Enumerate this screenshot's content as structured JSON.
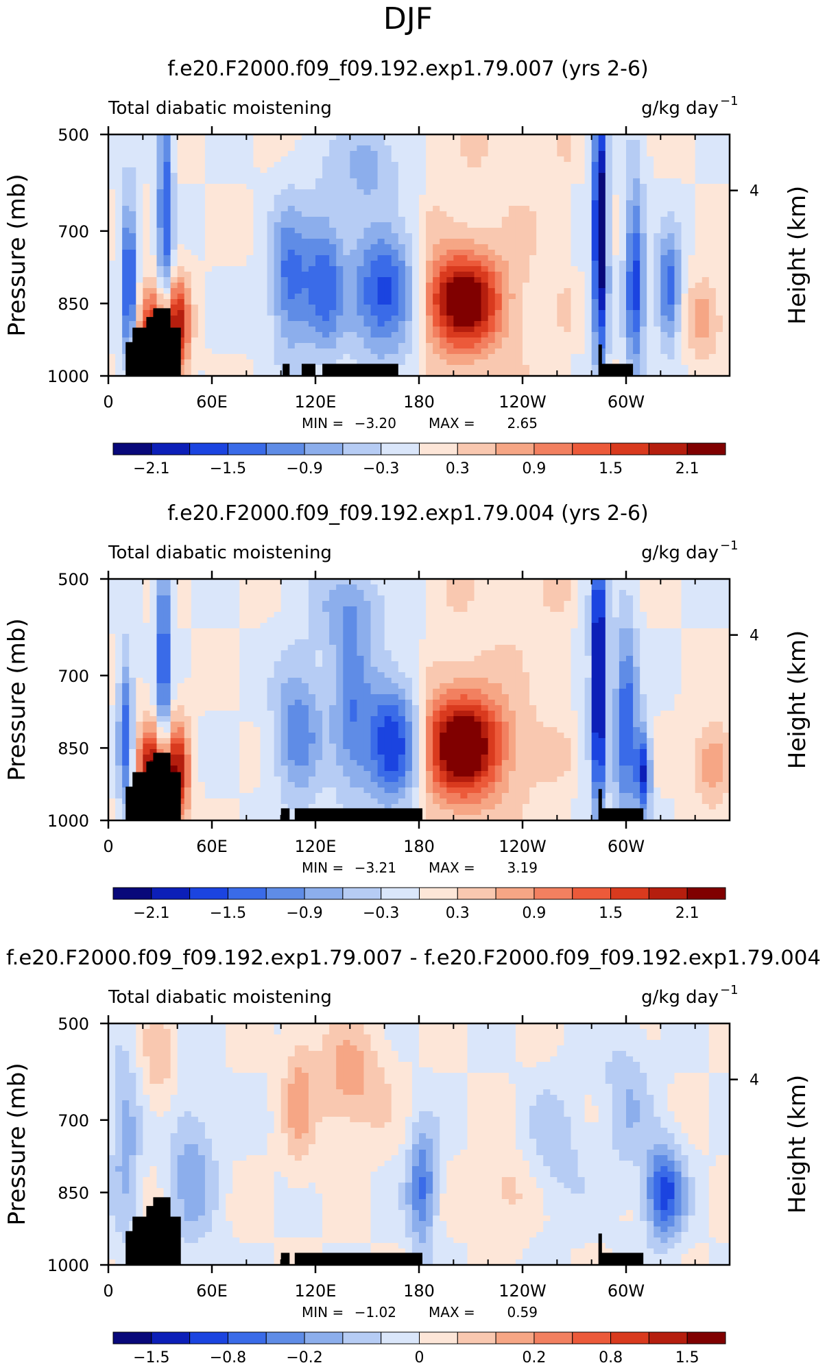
{
  "figure": {
    "title": "DJF"
  },
  "colors": {
    "scale": [
      "#08087a",
      "#0c1fb8",
      "#1b44e0",
      "#3a6be8",
      "#5f8ce6",
      "#8caeec",
      "#b6ccf4",
      "#dae6fa",
      "#fde6d8",
      "#f9c8b0",
      "#f6a685",
      "#f28060",
      "#ec5a3a",
      "#d93a1e",
      "#b51e0e",
      "#800000"
    ],
    "topography": "#000000"
  },
  "chart_data": [
    {
      "type": "heatmap",
      "title": "f.e20.F2000.f09_f09.192.exp1.79.007 (yrs 2-6)",
      "left_label": "Total diabatic moistening",
      "units_label": "g/kg day",
      "units_exponent": "−1",
      "ylabel": "Pressure (mb)",
      "ylabel_right": "Height (km)",
      "yticks": [
        "500",
        "700",
        "850",
        "1000"
      ],
      "ytick_values": [
        500,
        700,
        850,
        1000
      ],
      "right_ticks": [
        "4"
      ],
      "right_tick_pressure": 616,
      "xticks": [
        "0",
        "60E",
        "120E",
        "180",
        "120W",
        "60W"
      ],
      "xtick_values": [
        0,
        60,
        120,
        180,
        240,
        300
      ],
      "xlim": [
        0,
        360
      ],
      "ylim": [
        500,
        1000
      ],
      "min_label": "MIN =",
      "min_value": "−3.20",
      "max_label": "MAX =",
      "max_value": "2.65",
      "colorbar_labels": [
        "−2.1",
        "−1.5",
        "−0.9",
        "−0.3",
        "0.3",
        "0.9",
        "1.5",
        "2.1"
      ],
      "topography": [
        [
          10,
          930
        ],
        [
          14,
          930
        ],
        [
          14,
          900
        ],
        [
          22,
          900
        ],
        [
          22,
          878
        ],
        [
          26,
          878
        ],
        [
          26,
          860
        ],
        [
          36,
          860
        ],
        [
          36,
          900
        ],
        [
          42,
          900
        ],
        [
          42,
          1000
        ],
        [
          10,
          1000
        ]
      ],
      "topography_extra": [
        [
          [
            101,
            975
          ],
          [
            105,
            975
          ],
          [
            105,
            1000
          ],
          [
            101,
            1000
          ]
        ],
        [
          [
            112,
            975
          ],
          [
            120,
            975
          ],
          [
            120,
            1000
          ],
          [
            112,
            1000
          ]
        ],
        [
          [
            124,
            975
          ],
          [
            168,
            975
          ],
          [
            168,
            1000
          ],
          [
            124,
            1000
          ]
        ],
        [
          [
            284,
            935
          ],
          [
            286,
            935
          ],
          [
            286,
            975
          ],
          [
            304,
            975
          ],
          [
            304,
            1000
          ],
          [
            284,
            1000
          ]
        ]
      ],
      "features": [
        {
          "lon": 205,
          "p": 845,
          "amp": 2.4,
          "slon": 16,
          "sp": 70
        },
        {
          "lon": 160,
          "p": 830,
          "amp": -1.7,
          "slon": 14,
          "sp": 90
        },
        {
          "lon": 105,
          "p": 800,
          "amp": -1.3,
          "slon": 8,
          "sp": 110
        },
        {
          "lon": 125,
          "p": 800,
          "amp": -1.3,
          "slon": 8,
          "sp": 110
        },
        {
          "lon": 40,
          "p": 900,
          "amp": 2.0,
          "slon": 5,
          "sp": 70
        },
        {
          "lon": 25,
          "p": 900,
          "amp": 1.8,
          "slon": 6,
          "sp": 60
        },
        {
          "lon": 12,
          "p": 800,
          "amp": -1.8,
          "slon": 3,
          "sp": 120
        },
        {
          "lon": 33,
          "p": 650,
          "amp": -1.5,
          "slon": 3,
          "sp": 200
        },
        {
          "lon": 285,
          "p": 700,
          "amp": -2.6,
          "slon": 3,
          "sp": 200
        },
        {
          "lon": 305,
          "p": 800,
          "amp": -1.6,
          "slon": 4,
          "sp": 150
        },
        {
          "lon": 325,
          "p": 820,
          "amp": -1.5,
          "slon": 5,
          "sp": 80
        },
        {
          "lon": 150,
          "p": 560,
          "amp": -0.8,
          "slon": 12,
          "sp": 60
        },
        {
          "lon": 345,
          "p": 880,
          "amp": 0.8,
          "slon": 8,
          "sp": 60
        }
      ]
    },
    {
      "type": "heatmap",
      "title": "f.e20.F2000.f09_f09.192.exp1.79.004 (yrs 2-6)",
      "left_label": "Total diabatic moistening",
      "units_label": "g/kg day",
      "units_exponent": "−1",
      "ylabel": "Pressure (mb)",
      "ylabel_right": "Height (km)",
      "yticks": [
        "500",
        "700",
        "850",
        "1000"
      ],
      "ytick_values": [
        500,
        700,
        850,
        1000
      ],
      "right_ticks": [
        "4"
      ],
      "right_tick_pressure": 616,
      "xticks": [
        "0",
        "60E",
        "120E",
        "180",
        "120W",
        "60W"
      ],
      "xtick_values": [
        0,
        60,
        120,
        180,
        240,
        300
      ],
      "xlim": [
        0,
        360
      ],
      "ylim": [
        500,
        1000
      ],
      "min_label": "MIN =",
      "min_value": "−3.21",
      "max_label": "MAX =",
      "max_value": "3.19",
      "colorbar_labels": [
        "−2.1",
        "−1.5",
        "−0.9",
        "−0.3",
        "0.3",
        "0.9",
        "1.5",
        "2.1"
      ],
      "topography": [
        [
          10,
          930
        ],
        [
          14,
          930
        ],
        [
          14,
          900
        ],
        [
          22,
          900
        ],
        [
          22,
          878
        ],
        [
          26,
          878
        ],
        [
          26,
          860
        ],
        [
          36,
          860
        ],
        [
          36,
          900
        ],
        [
          42,
          900
        ],
        [
          42,
          1000
        ],
        [
          10,
          1000
        ]
      ],
      "topography_extra": [
        [
          [
            100,
            975
          ],
          [
            105,
            975
          ],
          [
            105,
            1000
          ],
          [
            100,
            1000
          ]
        ],
        [
          [
            108,
            975
          ],
          [
            182,
            975
          ],
          [
            182,
            1000
          ],
          [
            108,
            1000
          ]
        ],
        [
          [
            284,
            935
          ],
          [
            286,
            935
          ],
          [
            286,
            975
          ],
          [
            310,
            975
          ],
          [
            310,
            1000
          ],
          [
            284,
            1000
          ]
        ]
      ],
      "features": [
        {
          "lon": 205,
          "p": 845,
          "amp": 2.6,
          "slon": 17,
          "sp": 75
        },
        {
          "lon": 165,
          "p": 840,
          "amp": -1.9,
          "slon": 12,
          "sp": 90
        },
        {
          "lon": 110,
          "p": 810,
          "amp": -1.1,
          "slon": 10,
          "sp": 110
        },
        {
          "lon": 140,
          "p": 780,
          "amp": -1.0,
          "slon": 8,
          "sp": 120
        },
        {
          "lon": 40,
          "p": 900,
          "amp": 2.1,
          "slon": 5,
          "sp": 70
        },
        {
          "lon": 25,
          "p": 890,
          "amp": 2.2,
          "slon": 6,
          "sp": 60
        },
        {
          "lon": 10,
          "p": 820,
          "amp": -1.4,
          "slon": 3,
          "sp": 120
        },
        {
          "lon": 32,
          "p": 650,
          "amp": -1.5,
          "slon": 3,
          "sp": 200
        },
        {
          "lon": 284,
          "p": 700,
          "amp": -2.6,
          "slon": 3,
          "sp": 200
        },
        {
          "lon": 300,
          "p": 800,
          "amp": -1.5,
          "slon": 5,
          "sp": 150
        },
        {
          "lon": 310,
          "p": 900,
          "amp": -1.8,
          "slon": 3,
          "sp": 60
        },
        {
          "lon": 140,
          "p": 560,
          "amp": -0.8,
          "slon": 14,
          "sp": 70
        },
        {
          "lon": 350,
          "p": 880,
          "amp": 0.9,
          "slon": 8,
          "sp": 60
        }
      ]
    },
    {
      "type": "heatmap",
      "title": "f.e20.F2000.f09_f09.192.exp1.79.007 - f.e20.F2000.f09_f09.192.exp1.79.004",
      "left_label": "Total diabatic moistening",
      "units_label": "g/kg day",
      "units_exponent": "−1",
      "ylabel": "Pressure (mb)",
      "ylabel_right": "Height (km)",
      "yticks": [
        "500",
        "700",
        "850",
        "1000"
      ],
      "ytick_values": [
        500,
        700,
        850,
        1000
      ],
      "right_ticks": [
        "4"
      ],
      "right_tick_pressure": 616,
      "xticks": [
        "0",
        "60E",
        "120E",
        "180",
        "120W",
        "60W"
      ],
      "xtick_values": [
        0,
        60,
        120,
        180,
        240,
        300
      ],
      "xlim": [
        0,
        360
      ],
      "ylim": [
        500,
        1000
      ],
      "min_label": "MIN =",
      "min_value": "−1.02",
      "max_label": "MAX =",
      "max_value": "0.59",
      "colorbar_labels": [
        "−1.5",
        "−0.8",
        "−0.2",
        "0",
        "0.2",
        "0.8",
        "1.5"
      ],
      "colorbar_label_slots": [
        1,
        3,
        5,
        8,
        11,
        13,
        15
      ],
      "topography": [
        [
          10,
          930
        ],
        [
          14,
          930
        ],
        [
          14,
          900
        ],
        [
          22,
          900
        ],
        [
          22,
          878
        ],
        [
          26,
          878
        ],
        [
          26,
          860
        ],
        [
          36,
          860
        ],
        [
          36,
          900
        ],
        [
          42,
          900
        ],
        [
          42,
          1000
        ],
        [
          10,
          1000
        ]
      ],
      "topography_extra": [
        [
          [
            100,
            975
          ],
          [
            105,
            975
          ],
          [
            105,
            1000
          ],
          [
            100,
            1000
          ]
        ],
        [
          [
            108,
            975
          ],
          [
            182,
            975
          ],
          [
            182,
            1000
          ],
          [
            108,
            1000
          ]
        ],
        [
          [
            284,
            935
          ],
          [
            286,
            935
          ],
          [
            286,
            975
          ],
          [
            310,
            975
          ],
          [
            310,
            1000
          ],
          [
            284,
            1000
          ]
        ]
      ],
      "features": [
        {
          "lon": 322,
          "p": 850,
          "amp": -1.1,
          "slon": 8,
          "sp": 70
        },
        {
          "lon": 182,
          "p": 840,
          "amp": -0.85,
          "slon": 6,
          "sp": 90
        },
        {
          "lon": 140,
          "p": 620,
          "amp": 0.5,
          "slon": 15,
          "sp": 80
        },
        {
          "lon": 110,
          "p": 650,
          "amp": 0.4,
          "slon": 6,
          "sp": 120
        },
        {
          "lon": 48,
          "p": 800,
          "amp": -0.5,
          "slon": 10,
          "sp": 120
        },
        {
          "lon": 10,
          "p": 750,
          "amp": -0.5,
          "slon": 6,
          "sp": 150
        },
        {
          "lon": 230,
          "p": 850,
          "amp": 0.3,
          "slon": 10,
          "sp": 60
        },
        {
          "lon": 260,
          "p": 760,
          "amp": -0.3,
          "slon": 12,
          "sp": 100
        },
        {
          "lon": 300,
          "p": 650,
          "amp": -0.35,
          "slon": 10,
          "sp": 120
        },
        {
          "lon": 30,
          "p": 600,
          "amp": 0.3,
          "slon": 8,
          "sp": 80
        }
      ]
    }
  ]
}
